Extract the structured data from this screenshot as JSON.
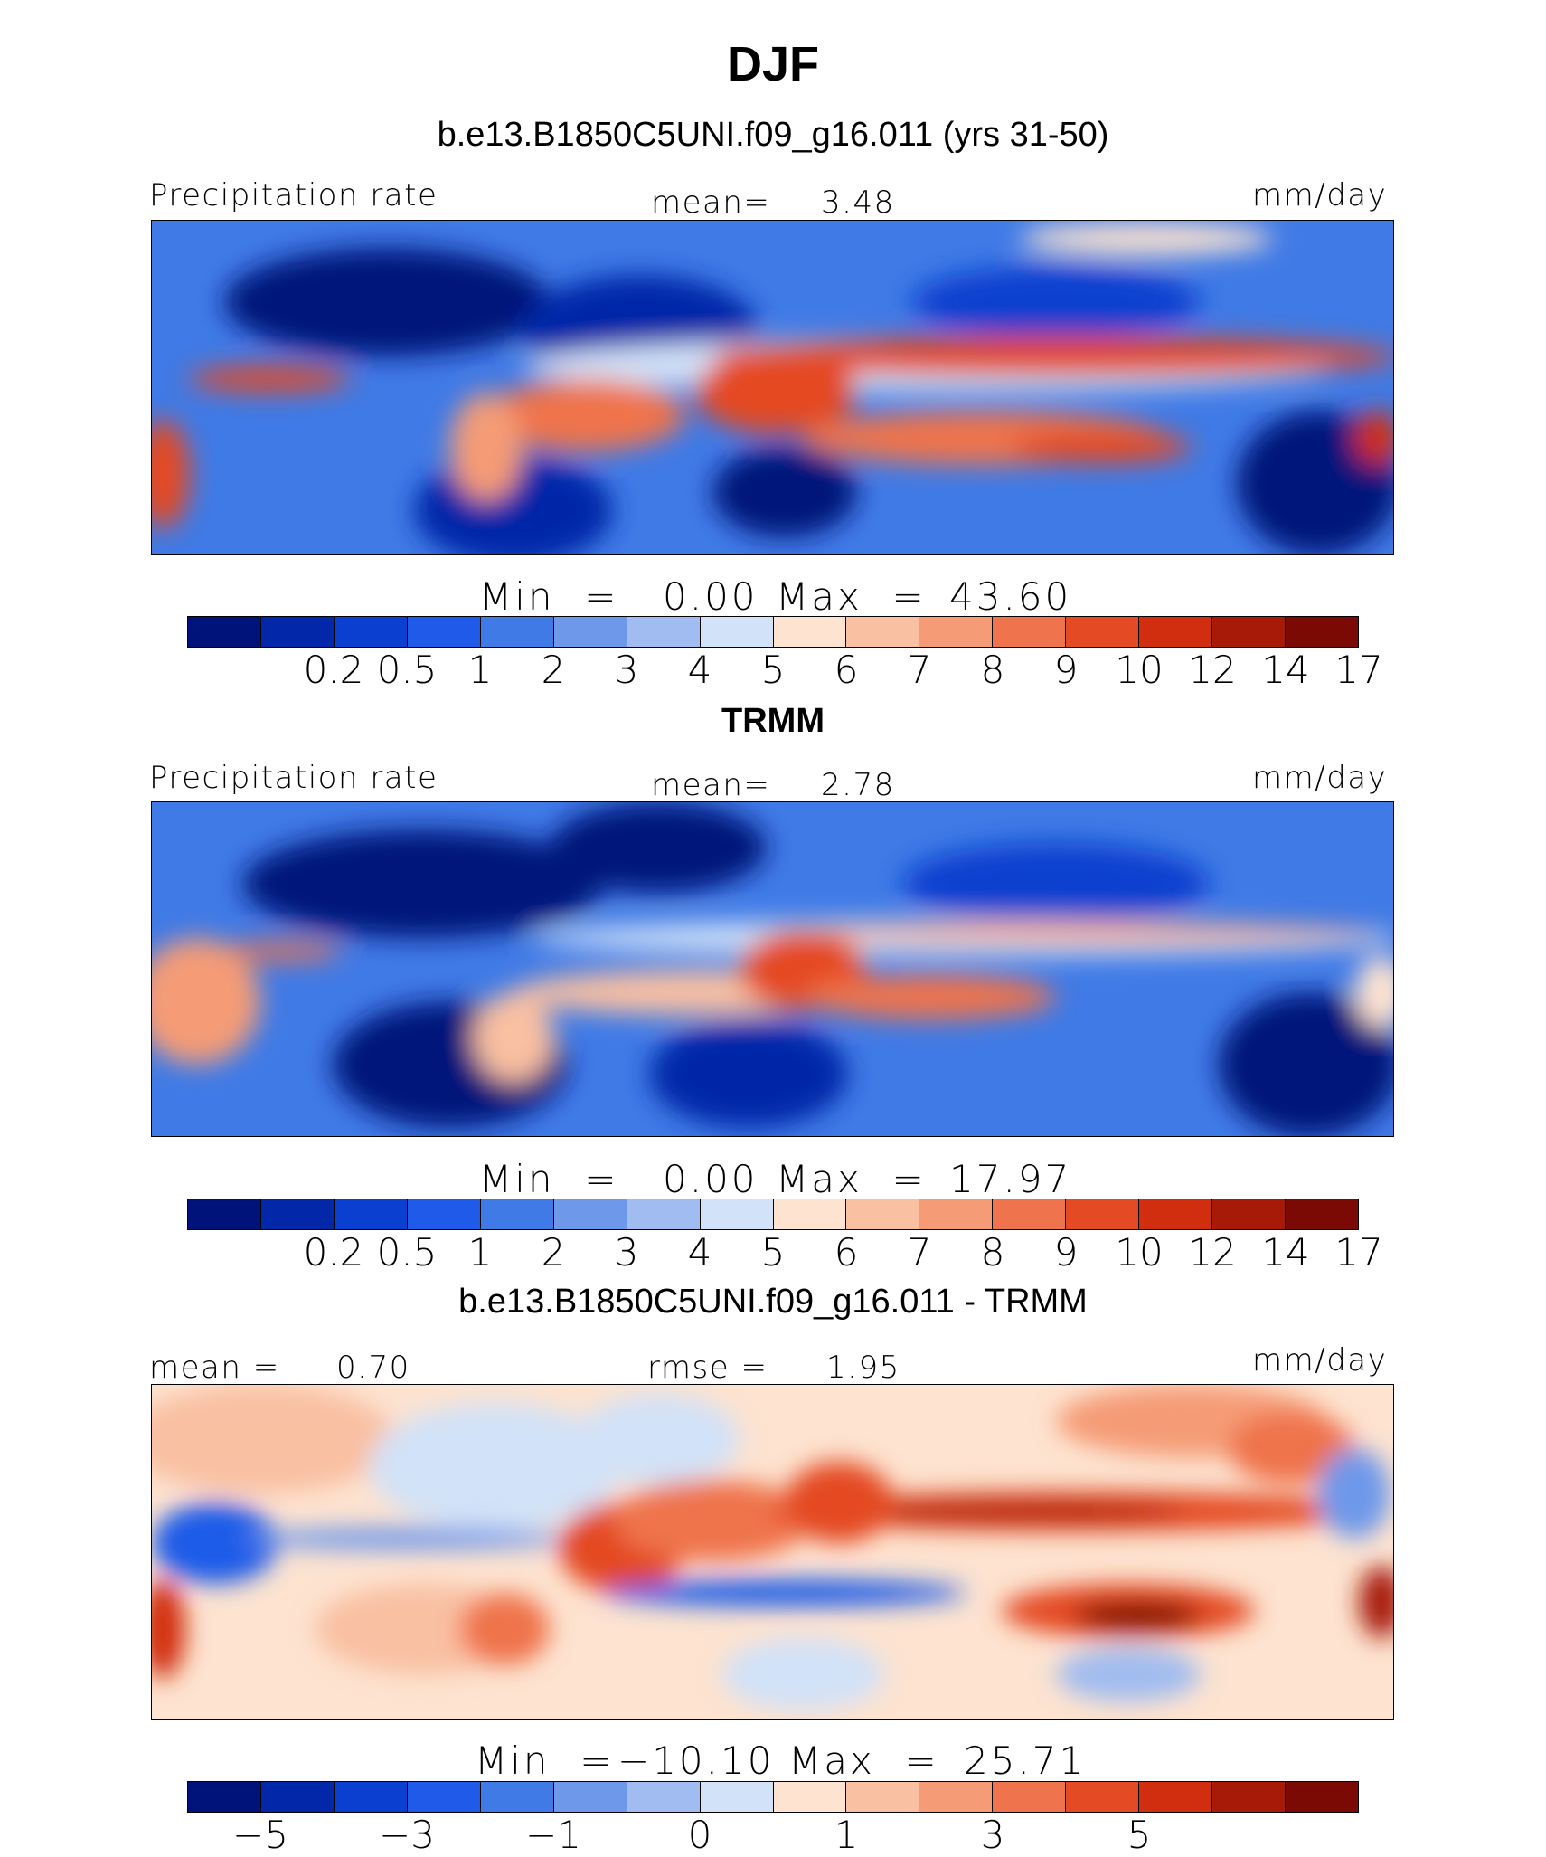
{
  "figure": {
    "title": "DJF",
    "units": "mm/day"
  },
  "chart_data": [
    {
      "type": "heatmap",
      "id": "model",
      "subtitle": "b.e13.B1850C5UNI.f09_g16.011 (yrs 31-50)",
      "variable": "Precipitation rate",
      "units": "mm/day",
      "stat_left_label": "",
      "mean_label": "mean=",
      "mean": "3.48",
      "min_label": "Min  =",
      "min": "0.00",
      "max_label": "Max  =",
      "max": "43.60",
      "colorbar_levels": [
        "0.2",
        "0.5",
        "1",
        "2",
        "3",
        "4",
        "5",
        "6",
        "7",
        "8",
        "9",
        "10",
        "12",
        "14",
        "17"
      ]
    },
    {
      "type": "heatmap",
      "id": "obs",
      "subtitle": "TRMM",
      "variable": "Precipitation rate",
      "units": "mm/day",
      "mean_label": "mean=",
      "mean": "2.78",
      "min_label": "Min  =",
      "min": "0.00",
      "max_label": "Max  =",
      "max": "17.97",
      "colorbar_levels": [
        "0.2",
        "0.5",
        "1",
        "2",
        "3",
        "4",
        "5",
        "6",
        "7",
        "8",
        "9",
        "10",
        "12",
        "14",
        "17"
      ]
    },
    {
      "type": "heatmap",
      "id": "diff",
      "subtitle": "b.e13.B1850C5UNI.f09_g16.011 - TRMM",
      "units": "mm/day",
      "mean_label": "mean =",
      "mean": "0.70",
      "rmse_label": "rmse =",
      "rmse": "1.95",
      "min_label": "Min  =",
      "min": "−10.10",
      "max_label": "Max  =",
      "max": "25.71",
      "colorbar_levels": [
        "−5",
        "−3",
        "−1",
        "0",
        "1",
        "3",
        "5"
      ]
    }
  ],
  "colors": {
    "palette": [
      "#00137a",
      "#0227a8",
      "#0a3fcf",
      "#1f5be8",
      "#3f7ae6",
      "#6e98ea",
      "#a0bcf0",
      "#d2e2f8",
      "#fde3d0",
      "#f9c0a2",
      "#f59b76",
      "#ef734c",
      "#e44a24",
      "#d12e0f",
      "#a81a08",
      "#7a0a03"
    ]
  }
}
